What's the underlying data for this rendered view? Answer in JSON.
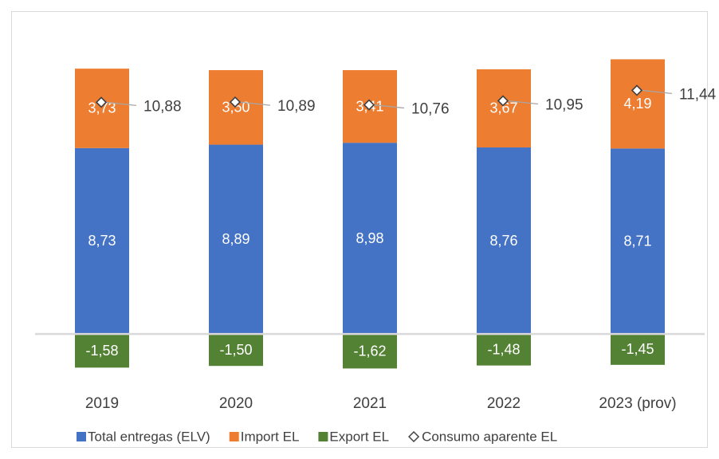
{
  "chart_data": {
    "type": "bar",
    "stacked": true,
    "categories": [
      "2019",
      "2020",
      "2021",
      "2022",
      "2023 (prov)"
    ],
    "ylim": [
      -4,
      14
    ],
    "legend": "bottom",
    "series": [
      {
        "name": "Total entregas (ELV)",
        "color": "#4472c4",
        "values": [
          8.73,
          8.89,
          8.98,
          8.76,
          8.71
        ],
        "value_labels": [
          "8,73",
          "8,89",
          "8,98",
          "8,76",
          "8,71"
        ]
      },
      {
        "name": "Import EL",
        "color": "#ed7d31",
        "values": [
          3.73,
          3.5,
          3.41,
          3.67,
          4.19
        ],
        "value_labels": [
          "3,73",
          "3,50",
          "3,41",
          "3,67",
          "4,19"
        ]
      },
      {
        "name": "Export EL",
        "color": "#548235",
        "values": [
          -1.58,
          -1.5,
          -1.62,
          -1.48,
          -1.45
        ],
        "value_labels": [
          "-1,58",
          "-1,50",
          "-1,62",
          "-1,48",
          "-1,45"
        ]
      },
      {
        "name": "Consumo aparente EL",
        "type": "line",
        "color": "#404040",
        "values": [
          10.88,
          10.89,
          10.76,
          10.95,
          11.44
        ],
        "value_labels": [
          "10,88",
          "10,89",
          "10,76",
          "10,95",
          "11,44"
        ]
      }
    ]
  }
}
